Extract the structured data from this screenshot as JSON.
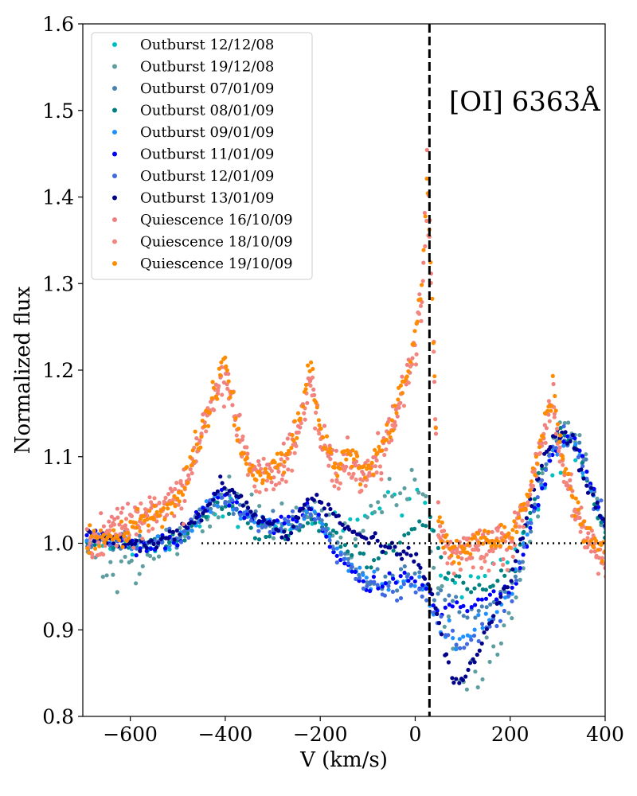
{
  "chart_data": {
    "type": "scatter",
    "title": "",
    "annotation": "[OI] 6363Å",
    "xlabel": "V (km/s)",
    "ylabel": "Normalized flux",
    "xlim": [
      -700,
      400
    ],
    "ylim": [
      0.8,
      1.6
    ],
    "xticks": [
      -600,
      -400,
      -200,
      0,
      200,
      400
    ],
    "xtick_labels": [
      "−600",
      "−400",
      "−200",
      "0",
      "200",
      "400"
    ],
    "yticks": [
      0.8,
      0.9,
      1.0,
      1.1,
      1.2,
      1.3,
      1.4,
      1.5,
      1.6
    ],
    "ytick_labels": [
      "0.8",
      "0.9",
      "1.0",
      "1.1",
      "1.2",
      "1.3",
      "1.4",
      "1.5",
      "1.6"
    ],
    "reference_lines": {
      "vertical_x": 30,
      "horizontal_y": 1.0
    },
    "legend_position": "top-left",
    "series": [
      {
        "name": "Outburst 12/12/08",
        "color": "#00bfbf",
        "x": [
          -690,
          -600,
          -500,
          -420,
          -350,
          -280,
          -220,
          -150,
          -80,
          -20,
          10,
          30,
          50,
          100,
          150,
          200,
          250,
          290,
          330,
          370,
          400
        ],
        "y": [
          1.0,
          0.99,
          1.0,
          1.04,
          1.03,
          1.02,
          1.02,
          1.02,
          1.04,
          1.05,
          1.06,
          1.03,
          0.97,
          0.95,
          0.96,
          0.98,
          1.03,
          1.08,
          1.12,
          1.05,
          1.02
        ]
      },
      {
        "name": "Outburst 19/12/08",
        "color": "#5f9ea0",
        "x": [
          -690,
          -620,
          -560,
          -500,
          -440,
          -400,
          -350,
          -300,
          -260,
          -220,
          -180,
          -140,
          -100,
          -60,
          -20,
          10,
          30,
          60,
          90,
          110,
          140,
          170,
          200,
          230,
          260,
          290,
          320,
          350,
          380,
          400
        ],
        "y": [
          0.98,
          0.97,
          0.98,
          1.0,
          1.03,
          1.06,
          1.04,
          1.02,
          1.03,
          1.04,
          1.02,
          1.0,
          1.02,
          1.05,
          1.07,
          1.08,
          1.02,
          0.92,
          0.86,
          0.84,
          0.86,
          0.88,
          0.92,
          0.98,
          1.06,
          1.12,
          1.13,
          1.12,
          1.05,
          1.01
        ]
      },
      {
        "name": "Outburst 07/01/09",
        "color": "#4682b4",
        "x": [
          -690,
          -600,
          -500,
          -420,
          -350,
          -280,
          -220,
          -160,
          -100,
          -40,
          0,
          30,
          70,
          120,
          170,
          220,
          260,
          300,
          340,
          380,
          400
        ],
        "y": [
          1.0,
          1.0,
          1.0,
          1.05,
          1.03,
          1.02,
          1.04,
          0.99,
          0.96,
          0.96,
          0.97,
          0.95,
          0.93,
          0.92,
          0.93,
          0.96,
          1.06,
          1.12,
          1.12,
          1.05,
          1.02
        ]
      },
      {
        "name": "Outburst 08/01/09",
        "color": "#008080",
        "x": [
          -690,
          -600,
          -500,
          -420,
          -350,
          -280,
          -220,
          -160,
          -100,
          -40,
          0,
          30,
          60,
          110,
          160,
          210,
          260,
          300,
          340,
          380,
          400
        ],
        "y": [
          1.0,
          1.0,
          1.0,
          1.05,
          1.02,
          1.01,
          1.03,
          1.0,
          0.98,
          1.0,
          1.02,
          1.03,
          0.97,
          0.95,
          0.95,
          0.97,
          1.07,
          1.13,
          1.11,
          1.04,
          1.01
        ]
      },
      {
        "name": "Outburst 09/01/09",
        "color": "#1e90ff",
        "x": [
          -690,
          -600,
          -500,
          -420,
          -350,
          -280,
          -220,
          -160,
          -100,
          -40,
          0,
          30,
          60,
          100,
          150,
          200,
          250,
          290,
          330,
          370,
          400
        ],
        "y": [
          1.01,
          1.0,
          1.0,
          1.05,
          1.03,
          1.02,
          1.04,
          0.99,
          0.96,
          0.95,
          0.96,
          0.93,
          0.9,
          0.89,
          0.91,
          0.94,
          1.04,
          1.11,
          1.12,
          1.06,
          1.02
        ]
      },
      {
        "name": "Outburst 11/01/09",
        "color": "#0000ff",
        "x": [
          -690,
          -600,
          -500,
          -420,
          -350,
          -280,
          -220,
          -160,
          -100,
          -40,
          0,
          30,
          60,
          110,
          160,
          210,
          260,
          300,
          340,
          380,
          400
        ],
        "y": [
          1.01,
          1.0,
          1.0,
          1.06,
          1.03,
          1.02,
          1.04,
          0.98,
          0.95,
          0.96,
          0.96,
          0.94,
          0.92,
          0.93,
          0.94,
          0.95,
          1.05,
          1.12,
          1.12,
          1.05,
          1.02
        ]
      },
      {
        "name": "Outburst 12/01/09",
        "color": "#4169e1",
        "x": [
          -690,
          -600,
          -500,
          -420,
          -350,
          -280,
          -220,
          -160,
          -100,
          -40,
          0,
          30,
          60,
          100,
          150,
          200,
          250,
          290,
          330,
          370,
          400
        ],
        "y": [
          1.01,
          1.0,
          1.0,
          1.06,
          1.03,
          1.02,
          1.04,
          0.98,
          0.95,
          0.94,
          0.95,
          0.93,
          0.9,
          0.88,
          0.9,
          0.93,
          1.04,
          1.11,
          1.12,
          1.06,
          1.02
        ]
      },
      {
        "name": "Outburst 13/01/09",
        "color": "#00008b",
        "x": [
          -690,
          -620,
          -560,
          -500,
          -440,
          -410,
          -380,
          -340,
          -300,
          -270,
          -240,
          -210,
          -180,
          -150,
          -120,
          -80,
          -40,
          0,
          30,
          60,
          80,
          100,
          130,
          160,
          200,
          240,
          270,
          300,
          330,
          360,
          390,
          400
        ],
        "y": [
          1.01,
          1.0,
          1.0,
          1.01,
          1.04,
          1.07,
          1.06,
          1.03,
          1.02,
          1.01,
          1.04,
          1.05,
          1.04,
          1.02,
          1.01,
          1.0,
          0.99,
          0.98,
          0.95,
          0.88,
          0.84,
          0.84,
          0.87,
          0.91,
          0.96,
          1.04,
          1.1,
          1.13,
          1.12,
          1.07,
          1.03,
          1.02
        ]
      },
      {
        "name": "Quiescence 16/10/09",
        "color": "#f08080",
        "x": [
          -690,
          -640,
          -590,
          -540,
          -490,
          -450,
          -420,
          -400,
          -380,
          -350,
          -310,
          -270,
          -240,
          -220,
          -200,
          -170,
          -140,
          -110,
          -80,
          -50,
          -20,
          0,
          15,
          25,
          35,
          50,
          80,
          120,
          160,
          200,
          240,
          270,
          290,
          310,
          340,
          370,
          400
        ],
        "y": [
          1.0,
          1.02,
          1.03,
          1.04,
          1.06,
          1.13,
          1.18,
          1.2,
          1.16,
          1.09,
          1.08,
          1.1,
          1.15,
          1.2,
          1.13,
          1.09,
          1.1,
          1.08,
          1.1,
          1.14,
          1.19,
          1.24,
          1.3,
          1.45,
          1.3,
          1.02,
          0.99,
          1.0,
          1.0,
          1.01,
          1.06,
          1.13,
          1.17,
          1.09,
          1.04,
          1.0,
          0.98
        ]
      },
      {
        "name": "Quiescence 18/10/09",
        "color": "#f4877d",
        "x": [
          -690,
          -640,
          -590,
          -540,
          -490,
          -450,
          -420,
          -400,
          -380,
          -350,
          -310,
          -270,
          -240,
          -220,
          -200,
          -170,
          -140,
          -110,
          -80,
          -50,
          -20,
          0,
          15,
          25,
          35,
          50,
          80,
          120,
          160,
          200,
          240,
          270,
          290,
          310,
          340,
          370,
          400
        ],
        "y": [
          0.99,
          1.01,
          1.02,
          1.03,
          1.05,
          1.12,
          1.17,
          1.19,
          1.15,
          1.08,
          1.07,
          1.09,
          1.14,
          1.19,
          1.12,
          1.08,
          1.09,
          1.07,
          1.09,
          1.13,
          1.18,
          1.23,
          1.28,
          1.4,
          1.28,
          1.01,
          0.98,
          0.99,
          0.99,
          1.0,
          1.05,
          1.12,
          1.16,
          1.08,
          1.03,
          0.99,
          0.97
        ]
      },
      {
        "name": "Quiescence 19/10/09",
        "color": "#ff8c00",
        "x": [
          -690,
          -640,
          -590,
          -540,
          -490,
          -450,
          -420,
          -400,
          -380,
          -350,
          -310,
          -270,
          -240,
          -220,
          -200,
          -170,
          -140,
          -110,
          -80,
          -50,
          -20,
          0,
          15,
          25,
          35,
          50,
          80,
          120,
          160,
          200,
          240,
          270,
          290,
          310,
          340,
          370,
          400
        ],
        "y": [
          1.0,
          1.01,
          1.02,
          1.03,
          1.06,
          1.13,
          1.18,
          1.21,
          1.15,
          1.08,
          1.08,
          1.1,
          1.15,
          1.21,
          1.13,
          1.09,
          1.1,
          1.08,
          1.1,
          1.14,
          1.19,
          1.24,
          1.31,
          1.42,
          1.3,
          1.02,
          0.99,
          1.0,
          1.0,
          1.01,
          1.06,
          1.13,
          1.18,
          1.1,
          1.04,
          1.0,
          0.99
        ]
      }
    ]
  }
}
